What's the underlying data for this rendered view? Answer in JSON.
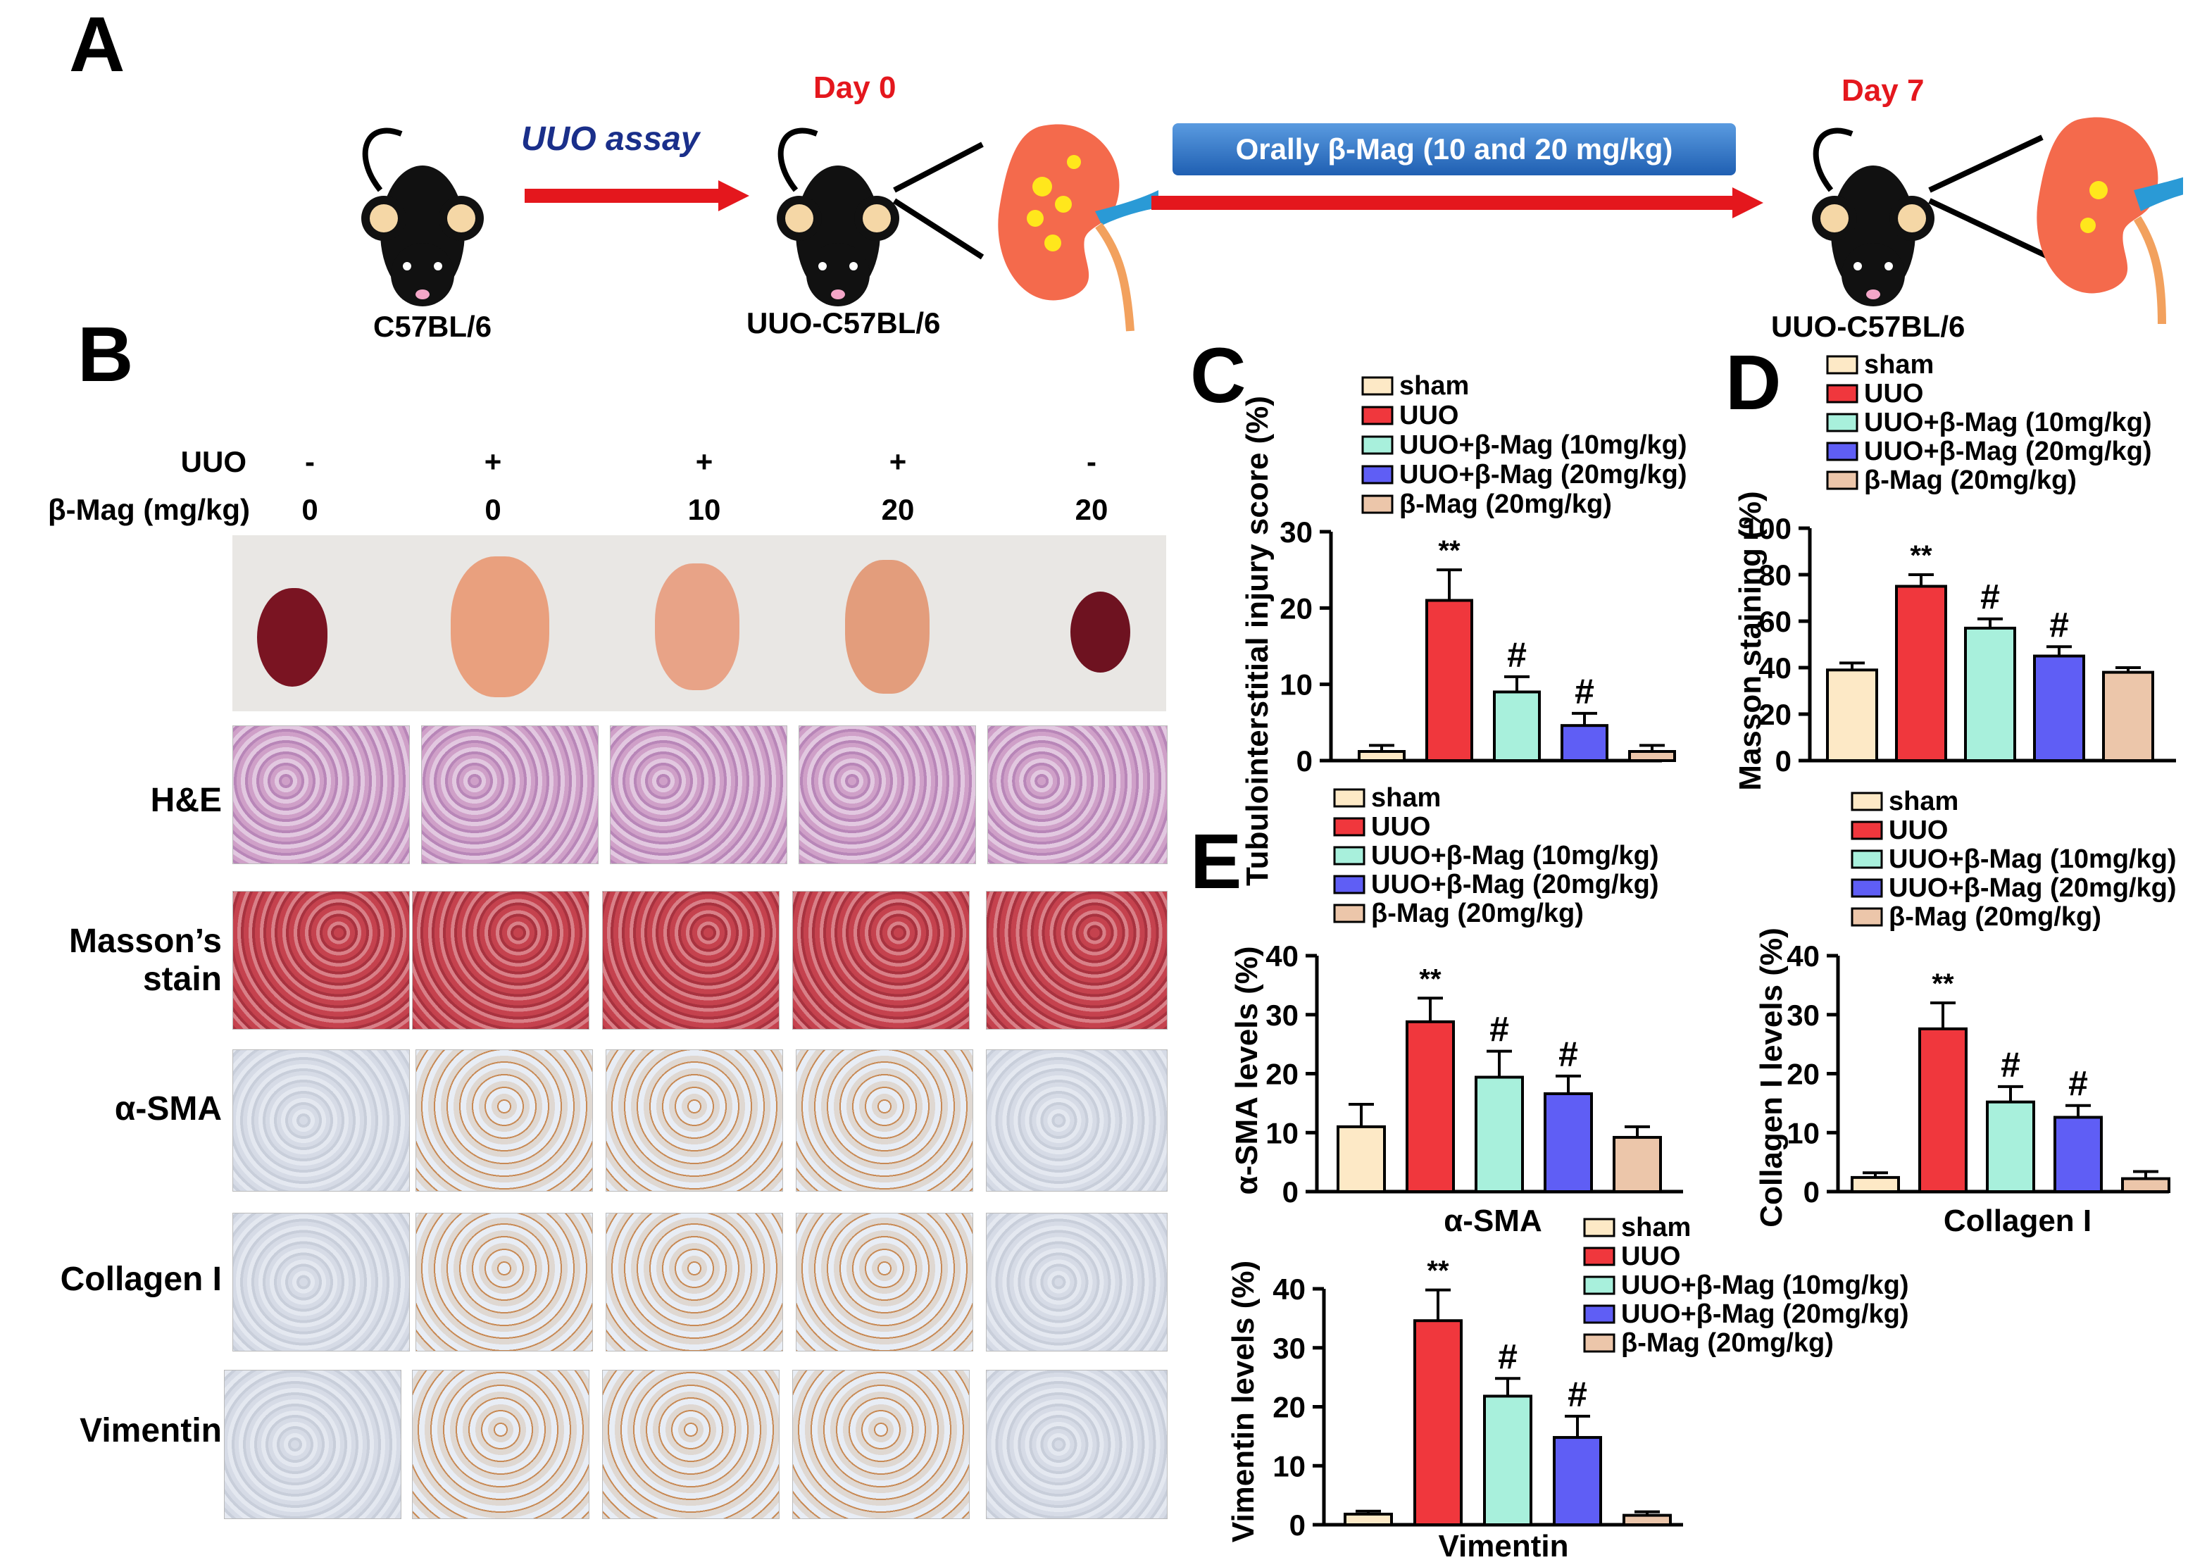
{
  "panel_labels": {
    "a": "A",
    "b": "B",
    "c": "C",
    "d": "D",
    "e": "E"
  },
  "schema": {
    "mouse1_label": "C57BL/6",
    "arrow1_label": "UUO assay",
    "day0_label": "Day 0",
    "mouse2_label": "UUO-C57BL/6",
    "banner_label": "Orally  β-Mag (10 and 20 mg/kg)",
    "day7_label": "Day 7",
    "mouse3_label": "UUO-C57BL/6"
  },
  "panel_b": {
    "uuo_label": "UUO",
    "dose_label": "β-Mag (mg/kg)",
    "uuo_values": [
      "-",
      "+",
      "+",
      "+",
      "-"
    ],
    "dose_values": [
      "0",
      "0",
      "10",
      "20",
      "20"
    ],
    "rows": [
      "H&E",
      "Masson’s stain",
      "α-SMA",
      "Collagen I",
      "Vimentin"
    ]
  },
  "colors": {
    "sham": "#fde9c6",
    "uuo": "#f0373d",
    "mag10": "#a8f0dc",
    "mag20": "#5f5ef5",
    "magonly": "#ecc6aa"
  },
  "chart_data": [
    {
      "id": "C",
      "type": "bar",
      "ylabel": "Tubulointerstitial injury score (%)",
      "xlabel": "",
      "ylim": [
        0,
        30
      ],
      "yticks": [
        0,
        10,
        20,
        30
      ],
      "categories": [
        "sham",
        "UUO",
        "UUO+β-Mag (10mg/kg)",
        "UUO+β-Mag (20mg/kg)",
        "β-Mag (20mg/kg)"
      ],
      "values": [
        1.2,
        21,
        9,
        4.6,
        1.2
      ],
      "errors": [
        0.8,
        4,
        2,
        1.6,
        0.8
      ],
      "annotations": [
        "",
        "**",
        "#",
        "#",
        ""
      ]
    },
    {
      "id": "D",
      "type": "bar",
      "ylabel": "Masson staining (%)",
      "xlabel": "",
      "ylim": [
        0,
        100
      ],
      "yticks": [
        0,
        20,
        40,
        60,
        80,
        100
      ],
      "categories": [
        "sham",
        "UUO",
        "UUO+β-Mag (10mg/kg)",
        "UUO+β-Mag (20mg/kg)",
        "β-Mag (20mg/kg)"
      ],
      "values": [
        39,
        75,
        57,
        45,
        38
      ],
      "errors": [
        3,
        5,
        4,
        4,
        2
      ],
      "annotations": [
        "",
        "**",
        "#",
        "#",
        ""
      ]
    },
    {
      "id": "E1",
      "type": "bar",
      "ylabel": "α-SMA levels (%)",
      "xlabel": "α-SMA",
      "ylim": [
        0,
        40
      ],
      "yticks": [
        0,
        10,
        20,
        30,
        40
      ],
      "categories": [
        "sham",
        "UUO",
        "UUO+β-Mag (10mg/kg)",
        "UUO+β-Mag (20mg/kg)",
        "β-Mag (20mg/kg)"
      ],
      "values": [
        11,
        28.8,
        19.4,
        16.6,
        9.2
      ],
      "errors": [
        3.8,
        4,
        4.4,
        3,
        1.8
      ],
      "annotations": [
        "",
        "**",
        "#",
        "#",
        ""
      ]
    },
    {
      "id": "E2",
      "type": "bar",
      "ylabel": "Collagen I levels (%)",
      "xlabel": "Collagen I",
      "ylim": [
        0,
        40
      ],
      "yticks": [
        0,
        10,
        20,
        30,
        40
      ],
      "categories": [
        "sham",
        "UUO",
        "UUO+β-Mag (10mg/kg)",
        "UUO+β-Mag (20mg/kg)",
        "β-Mag (20mg/kg)"
      ],
      "values": [
        2.4,
        27.6,
        15.2,
        12.6,
        2.2
      ],
      "errors": [
        0.8,
        4.4,
        2.6,
        2,
        1.2
      ],
      "annotations": [
        "",
        "**",
        "#",
        "#",
        ""
      ]
    },
    {
      "id": "E3",
      "type": "bar",
      "ylabel": "Vimentin levels (%)",
      "xlabel": "Vimentin",
      "ylim": [
        0,
        40
      ],
      "yticks": [
        0,
        10,
        20,
        30,
        40
      ],
      "categories": [
        "sham",
        "UUO",
        "UUO+β-Mag (10mg/kg)",
        "UUO+β-Mag (20mg/kg)",
        "β-Mag (20mg/kg)"
      ],
      "values": [
        1.8,
        34.6,
        21.8,
        14.8,
        1.6
      ],
      "errors": [
        0.5,
        5.2,
        3,
        3.6,
        0.6
      ],
      "annotations": [
        "",
        "**",
        "#",
        "#",
        ""
      ]
    }
  ],
  "legend_labels": [
    "sham",
    "UUO",
    "UUO+β-Mag (10mg/kg)",
    "UUO+β-Mag (20mg/kg)",
    "β-Mag (20mg/kg)"
  ]
}
